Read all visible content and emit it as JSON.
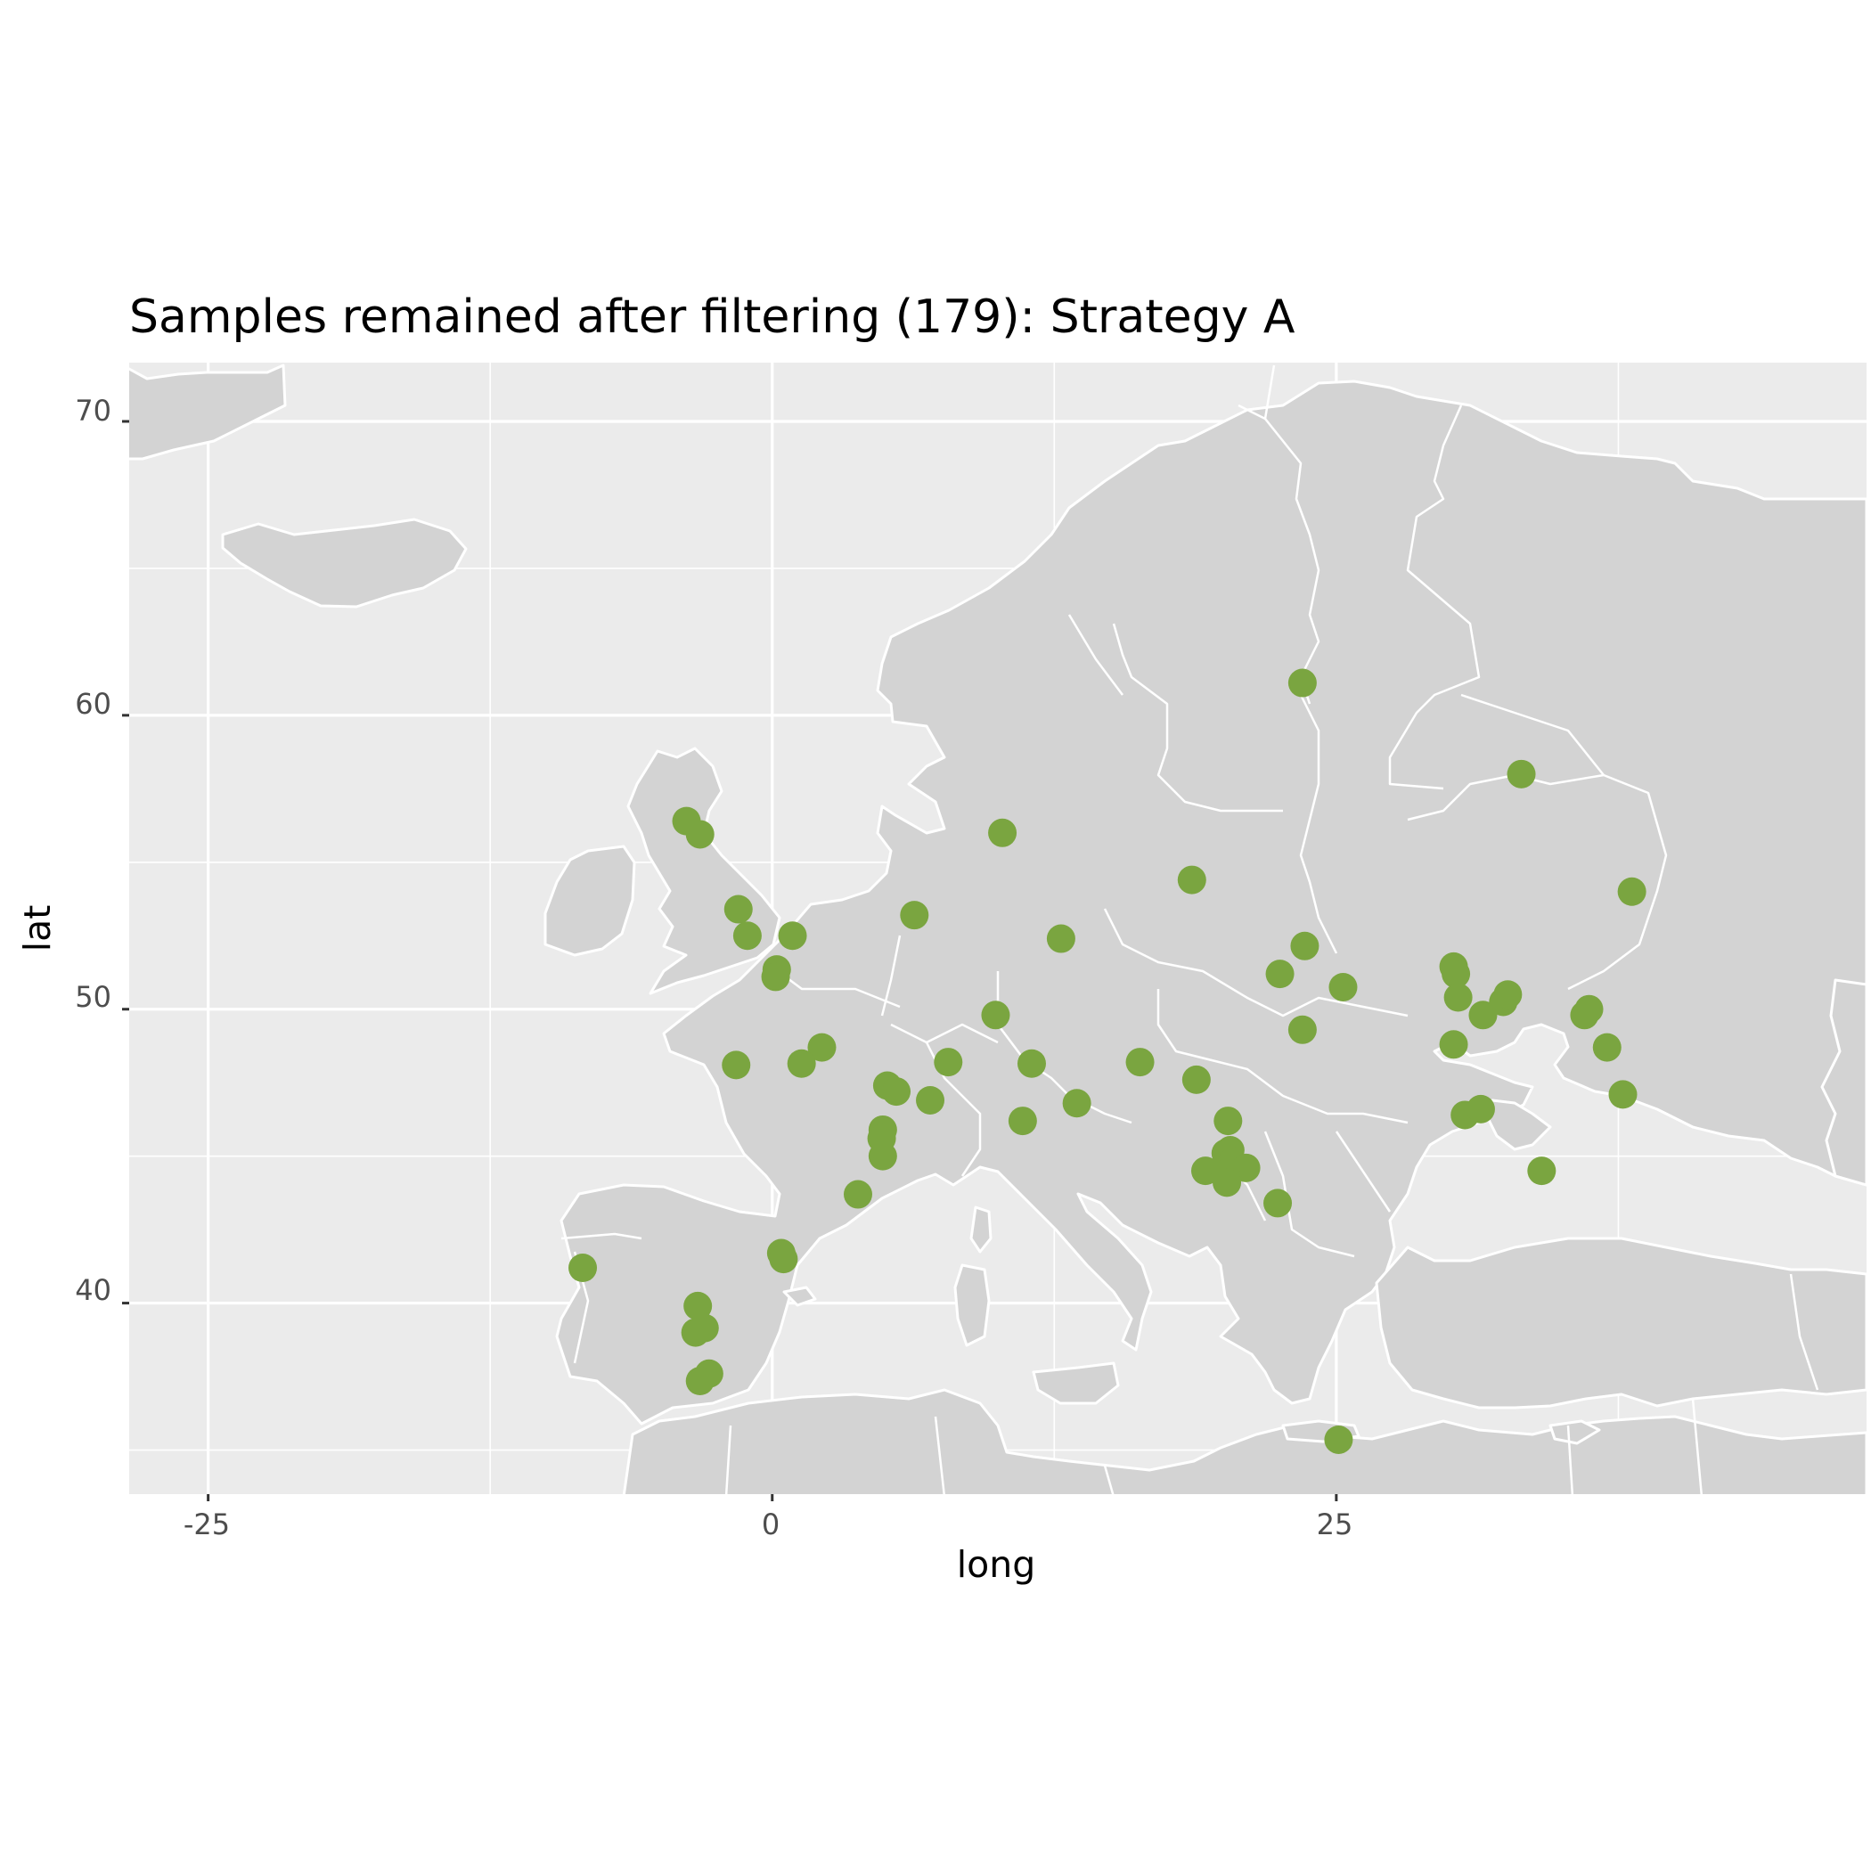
{
  "chart_data": {
    "type": "scatter",
    "title": "Samples remained after filtering (179): Strategy A",
    "xlabel": "long",
    "ylabel": "lat",
    "xlim": [
      -28.5,
      48.5
    ],
    "ylim": [
      33.5,
      72
    ],
    "x_ticks": [
      -25,
      0,
      25
    ],
    "x_tick_labels": [
      "-25",
      "0",
      "25"
    ],
    "y_ticks": [
      40,
      50,
      60,
      70
    ],
    "y_tick_labels": [
      "40",
      "50",
      "60",
      "70"
    ],
    "grid": true,
    "basemap": "world country borders",
    "colors": {
      "panel": "#ebebeb",
      "land": "#d3d3d3",
      "border": "#ffffff",
      "point": "#7aa540"
    },
    "points": [
      {
        "x": 23.5,
        "y": 61.1
      },
      {
        "x": 33.2,
        "y": 58.0
      },
      {
        "x": 38.1,
        "y": 54.0
      },
      {
        "x": -3.8,
        "y": 56.4
      },
      {
        "x": -3.2,
        "y": 55.95
      },
      {
        "x": 10.2,
        "y": 56.0
      },
      {
        "x": 18.6,
        "y": 54.4
      },
      {
        "x": 6.3,
        "y": 53.2
      },
      {
        "x": -1.5,
        "y": 53.4
      },
      {
        "x": -1.1,
        "y": 52.5
      },
      {
        "x": 0.9,
        "y": 52.5
      },
      {
        "x": 12.8,
        "y": 52.4
      },
      {
        "x": 23.6,
        "y": 52.15
      },
      {
        "x": 22.5,
        "y": 51.2
      },
      {
        "x": 25.3,
        "y": 50.75
      },
      {
        "x": 0.2,
        "y": 51.35
      },
      {
        "x": 0.15,
        "y": 51.1
      },
      {
        "x": 30.2,
        "y": 51.45
      },
      {
        "x": 30.3,
        "y": 51.2
      },
      {
        "x": 30.4,
        "y": 50.4
      },
      {
        "x": 31.5,
        "y": 49.8
      },
      {
        "x": 32.4,
        "y": 50.25
      },
      {
        "x": 32.6,
        "y": 50.5
      },
      {
        "x": 36.0,
        "y": 49.8
      },
      {
        "x": 36.2,
        "y": 50.0
      },
      {
        "x": 37.0,
        "y": 48.7
      },
      {
        "x": 37.7,
        "y": 47.1
      },
      {
        "x": 23.5,
        "y": 49.3
      },
      {
        "x": 30.2,
        "y": 48.8
      },
      {
        "x": 9.9,
        "y": 49.8
      },
      {
        "x": 2.2,
        "y": 48.7
      },
      {
        "x": 1.3,
        "y": 48.15
      },
      {
        "x": -1.6,
        "y": 48.1
      },
      {
        "x": 7.8,
        "y": 48.2
      },
      {
        "x": 11.5,
        "y": 48.15
      },
      {
        "x": 16.3,
        "y": 48.2
      },
      {
        "x": 18.8,
        "y": 47.6
      },
      {
        "x": 5.1,
        "y": 47.4
      },
      {
        "x": 5.5,
        "y": 47.2
      },
      {
        "x": 7.0,
        "y": 46.9
      },
      {
        "x": 13.5,
        "y": 46.8
      },
      {
        "x": 11.1,
        "y": 46.2
      },
      {
        "x": 30.7,
        "y": 46.4
      },
      {
        "x": 31.4,
        "y": 46.6
      },
      {
        "x": 20.2,
        "y": 46.2
      },
      {
        "x": 4.9,
        "y": 45.9
      },
      {
        "x": 4.85,
        "y": 45.6
      },
      {
        "x": 4.9,
        "y": 45.0
      },
      {
        "x": 20.3,
        "y": 45.2
      },
      {
        "x": 20.1,
        "y": 45.1
      },
      {
        "x": 20.4,
        "y": 44.8
      },
      {
        "x": 21.0,
        "y": 44.6
      },
      {
        "x": 19.2,
        "y": 44.5
      },
      {
        "x": 20.1,
        "y": 44.4
      },
      {
        "x": 20.15,
        "y": 44.1
      },
      {
        "x": 34.1,
        "y": 44.5
      },
      {
        "x": 3.8,
        "y": 43.7
      },
      {
        "x": 22.4,
        "y": 43.4
      },
      {
        "x": 0.4,
        "y": 41.7
      },
      {
        "x": 0.5,
        "y": 41.5
      },
      {
        "x": -8.4,
        "y": 41.2
      },
      {
        "x": -3.3,
        "y": 39.9
      },
      {
        "x": -3.4,
        "y": 39.0
      },
      {
        "x": -3.0,
        "y": 39.15
      },
      {
        "x": -2.8,
        "y": 37.6
      },
      {
        "x": -3.2,
        "y": 37.35
      },
      {
        "x": 25.1,
        "y": 35.35
      }
    ]
  }
}
